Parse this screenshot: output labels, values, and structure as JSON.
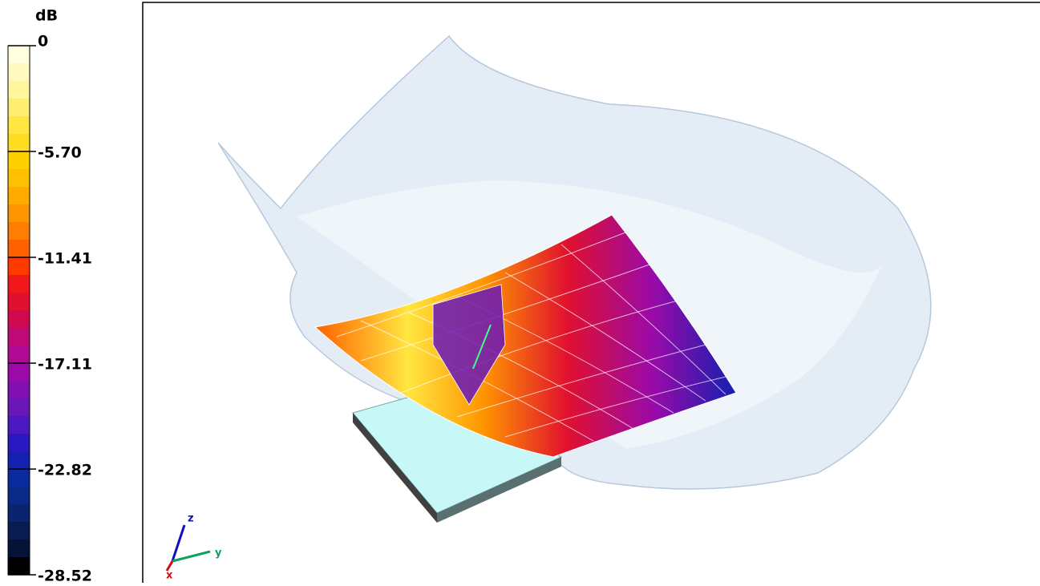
{
  "colorbar": {
    "unit": "dB",
    "ticks": [
      0,
      {
        "value": -5.7,
        "label": "-5.70"
      },
      -11.41,
      -17.11,
      -22.82,
      -28.52
    ],
    "colors": [
      "#ffffe0",
      "#fffac0",
      "#fff59a",
      "#ffee70",
      "#ffe640",
      "#ffdc20",
      "#ffd000",
      "#ffc000",
      "#ffab00",
      "#ff9500",
      "#ff7d00",
      "#ff6000",
      "#ff3a00",
      "#f01818",
      "#e0102f",
      "#d00a50",
      "#c00a78",
      "#b00a95",
      "#9a0aa8",
      "#8010b0",
      "#6818b8",
      "#4a18c0",
      "#2a18c0",
      "#1420b0",
      "#0a2aa0",
      "#0a2a88",
      "#0a2470",
      "#081c50",
      "#061236",
      "#000000"
    ]
  },
  "axes": {
    "z": "z",
    "x": "x",
    "y": "y"
  }
}
